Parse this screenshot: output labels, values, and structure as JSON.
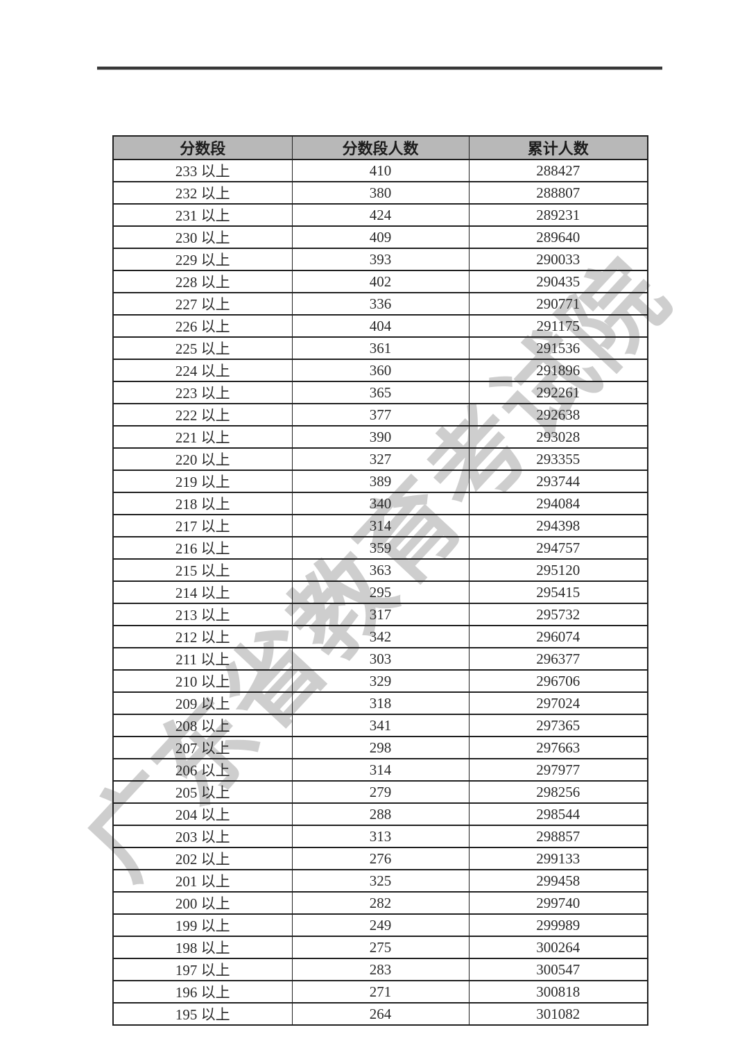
{
  "page": {
    "watermark": "广东省教育考试院"
  },
  "colors": {
    "header_bg": "#b8b8b8",
    "border": "#1f1f1f",
    "watermark_gray": "#8c8c8c",
    "top_rule": "#383838"
  },
  "table": {
    "headers": [
      "分数段",
      "分数段人数",
      "累计人数"
    ],
    "rows": [
      {
        "band": "233 以上",
        "count": 410,
        "cumulative": 288427
      },
      {
        "band": "232 以上",
        "count": 380,
        "cumulative": 288807
      },
      {
        "band": "231 以上",
        "count": 424,
        "cumulative": 289231
      },
      {
        "band": "230 以上",
        "count": 409,
        "cumulative": 289640
      },
      {
        "band": "229 以上",
        "count": 393,
        "cumulative": 290033
      },
      {
        "band": "228 以上",
        "count": 402,
        "cumulative": 290435
      },
      {
        "band": "227 以上",
        "count": 336,
        "cumulative": 290771
      },
      {
        "band": "226 以上",
        "count": 404,
        "cumulative": 291175
      },
      {
        "band": "225 以上",
        "count": 361,
        "cumulative": 291536
      },
      {
        "band": "224 以上",
        "count": 360,
        "cumulative": 291896
      },
      {
        "band": "223 以上",
        "count": 365,
        "cumulative": 292261
      },
      {
        "band": "222 以上",
        "count": 377,
        "cumulative": 292638
      },
      {
        "band": "221 以上",
        "count": 390,
        "cumulative": 293028
      },
      {
        "band": "220 以上",
        "count": 327,
        "cumulative": 293355
      },
      {
        "band": "219 以上",
        "count": 389,
        "cumulative": 293744
      },
      {
        "band": "218 以上",
        "count": 340,
        "cumulative": 294084
      },
      {
        "band": "217 以上",
        "count": 314,
        "cumulative": 294398
      },
      {
        "band": "216 以上",
        "count": 359,
        "cumulative": 294757
      },
      {
        "band": "215 以上",
        "count": 363,
        "cumulative": 295120
      },
      {
        "band": "214 以上",
        "count": 295,
        "cumulative": 295415
      },
      {
        "band": "213 以上",
        "count": 317,
        "cumulative": 295732
      },
      {
        "band": "212 以上",
        "count": 342,
        "cumulative": 296074
      },
      {
        "band": "211 以上",
        "count": 303,
        "cumulative": 296377
      },
      {
        "band": "210 以上",
        "count": 329,
        "cumulative": 296706
      },
      {
        "band": "209 以上",
        "count": 318,
        "cumulative": 297024
      },
      {
        "band": "208 以上",
        "count": 341,
        "cumulative": 297365
      },
      {
        "band": "207 以上",
        "count": 298,
        "cumulative": 297663
      },
      {
        "band": "206 以上",
        "count": 314,
        "cumulative": 297977
      },
      {
        "band": "205 以上",
        "count": 279,
        "cumulative": 298256
      },
      {
        "band": "204 以上",
        "count": 288,
        "cumulative": 298544
      },
      {
        "band": "203 以上",
        "count": 313,
        "cumulative": 298857
      },
      {
        "band": "202 以上",
        "count": 276,
        "cumulative": 299133
      },
      {
        "band": "201 以上",
        "count": 325,
        "cumulative": 299458
      },
      {
        "band": "200 以上",
        "count": 282,
        "cumulative": 299740
      },
      {
        "band": "199 以上",
        "count": 249,
        "cumulative": 299989
      },
      {
        "band": "198 以上",
        "count": 275,
        "cumulative": 300264
      },
      {
        "band": "197 以上",
        "count": 283,
        "cumulative": 300547
      },
      {
        "band": "196 以上",
        "count": 271,
        "cumulative": 300818
      },
      {
        "band": "195 以上",
        "count": 264,
        "cumulative": 301082
      }
    ]
  }
}
